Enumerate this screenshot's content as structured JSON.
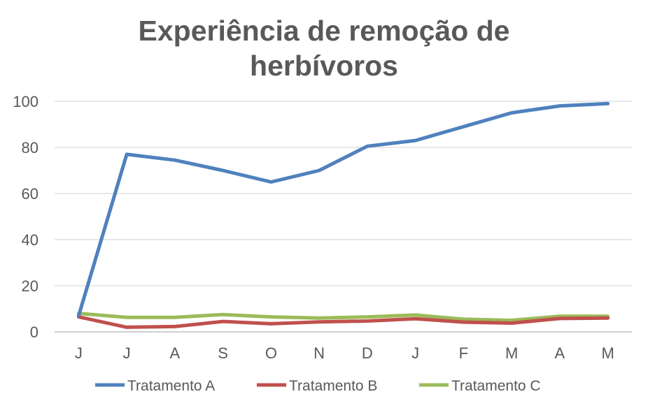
{
  "chart_data": {
    "type": "line",
    "title_lines": [
      "Experiência de remoção de",
      "herbívoros"
    ],
    "xlabel": "",
    "ylabel": "",
    "categories": [
      "J",
      "J",
      "A",
      "S",
      "O",
      "N",
      "D",
      "J",
      "F",
      "M",
      "A",
      "M"
    ],
    "ylim": [
      0,
      100
    ],
    "yticks": [
      0,
      20,
      40,
      60,
      80,
      100
    ],
    "grid": true,
    "legend_position": "bottom",
    "series": [
      {
        "name": "Tratamento A",
        "color": "#4f81bd",
        "values": [
          7,
          77,
          74.5,
          70,
          65,
          70,
          80.5,
          83,
          89,
          95,
          98,
          99
        ]
      },
      {
        "name": "Tratamento B",
        "color": "#c0504d",
        "values": [
          6.5,
          2,
          2.3,
          4.5,
          3.5,
          4.3,
          4.7,
          5.7,
          4.2,
          3.8,
          5.8,
          6
        ]
      },
      {
        "name": "Tratamento C",
        "color": "#9bbb59",
        "values": [
          8,
          6.3,
          6.3,
          7.5,
          6.5,
          6,
          6.5,
          7.3,
          5.5,
          5,
          6.8,
          6.8
        ]
      }
    ]
  }
}
